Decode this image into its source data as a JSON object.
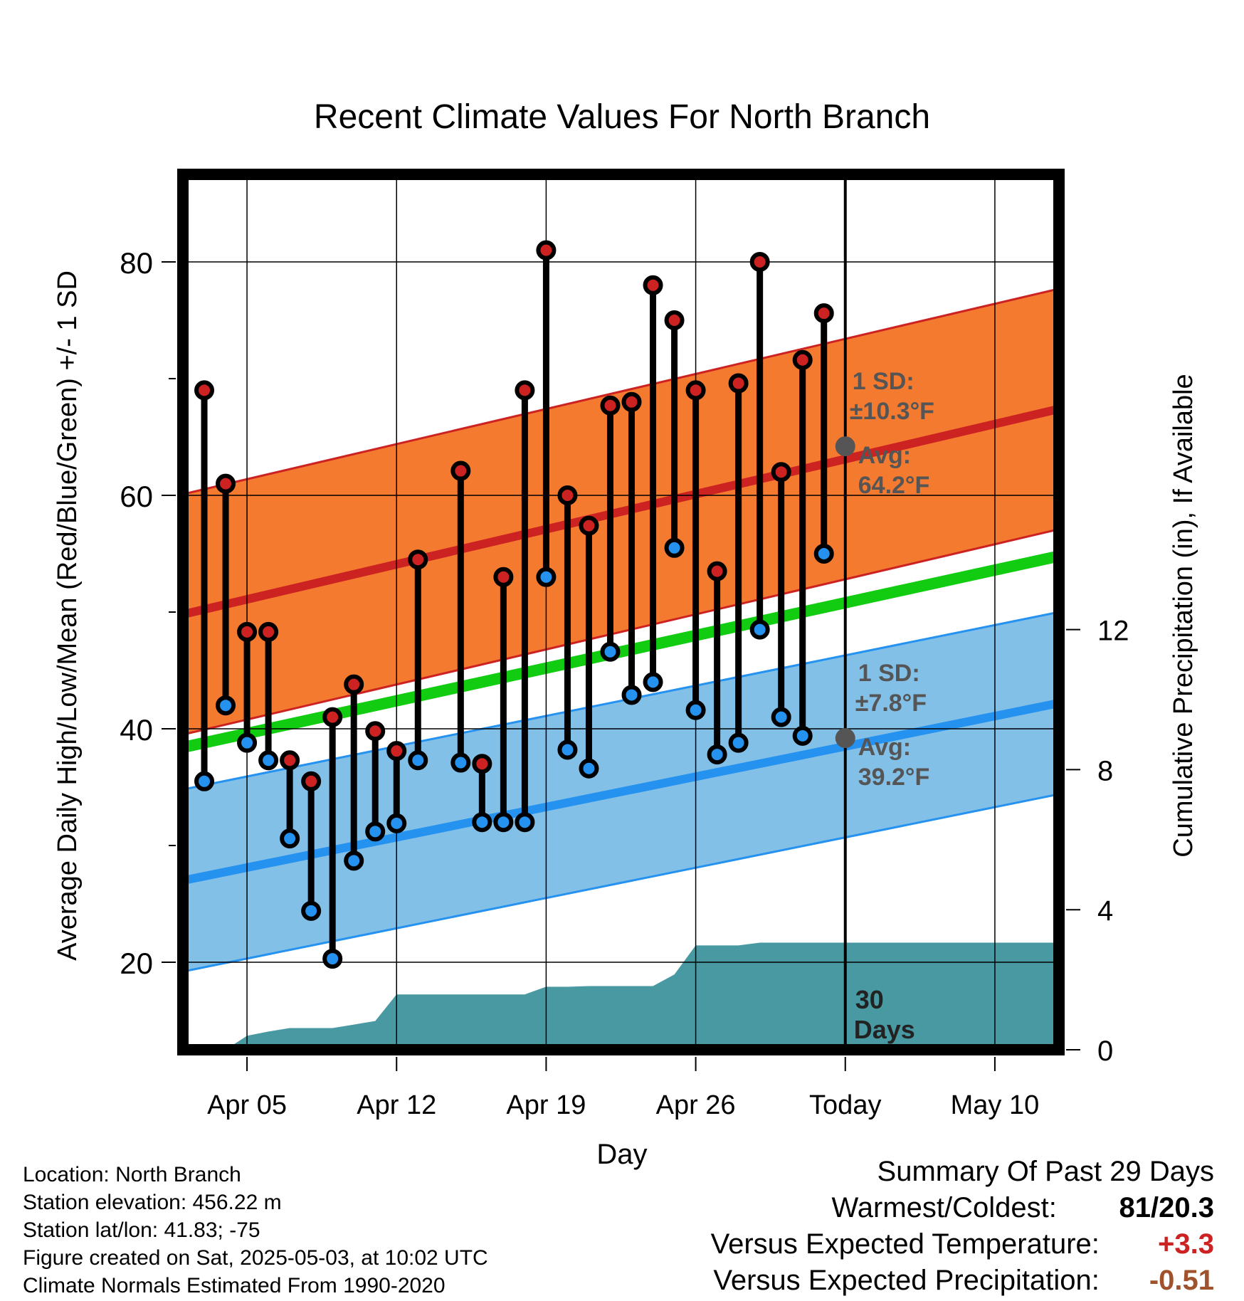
{
  "chart_data": {
    "type": "line",
    "title": "Recent Climate Values For North Branch",
    "xlabel": "Day",
    "ylabel": "Average Daily High/Low/Mean (Red/Blue/Green) +/- 1 SD",
    "y2label": "Cumulative Precipitation (in), If Available",
    "xlim": [
      "2025-04-02",
      "2025-05-13"
    ],
    "ylim": [
      12.5,
      87.5
    ],
    "y2lim": [
      0,
      25
    ],
    "xticks": [
      {
        "date": "2025-04-05",
        "label": "Apr 05"
      },
      {
        "date": "2025-04-12",
        "label": "Apr 12"
      },
      {
        "date": "2025-04-19",
        "label": "Apr 19"
      },
      {
        "date": "2025-04-26",
        "label": "Apr 26"
      },
      {
        "date": "2025-05-03",
        "label": "Today"
      },
      {
        "date": "2025-05-10",
        "label": "May 10"
      }
    ],
    "yticks": [
      20,
      40,
      60,
      80
    ],
    "y2ticks": [
      0,
      4,
      8,
      12
    ],
    "grid": true,
    "today": "2025-05-03",
    "today_label": [
      "30",
      "Days"
    ],
    "normals": {
      "dates": [
        "2025-04-02",
        "2025-05-13"
      ],
      "high_mean": [
        49.8,
        67.4
      ],
      "high_sd": 10.3,
      "low_mean": [
        27.0,
        42.2
      ],
      "low_sd": 7.8,
      "mean": [
        38.4,
        54.8
      ]
    },
    "annotations": {
      "high_sd_label": [
        "1 SD:",
        "±10.3°F"
      ],
      "high_avg_label": [
        "Avg:",
        "64.2°F"
      ],
      "high_avg_value": 64.2,
      "low_sd_label": [
        "1 SD:",
        "±7.8°F"
      ],
      "low_avg_label": [
        "Avg:",
        "39.2°F"
      ],
      "low_avg_value": 39.2
    },
    "series": [
      {
        "name": "High",
        "x": [
          "2025-04-03",
          "2025-04-04",
          "2025-04-05",
          "2025-04-06",
          "2025-04-07",
          "2025-04-08",
          "2025-04-09",
          "2025-04-10",
          "2025-04-11",
          "2025-04-12",
          "2025-04-13",
          "2025-04-15",
          "2025-04-16",
          "2025-04-17",
          "2025-04-18",
          "2025-04-19",
          "2025-04-20",
          "2025-04-21",
          "2025-04-22",
          "2025-04-23",
          "2025-04-24",
          "2025-04-25",
          "2025-04-26",
          "2025-04-27",
          "2025-04-28",
          "2025-04-29",
          "2025-04-30",
          "2025-05-01",
          "2025-05-02"
        ],
        "values": [
          69,
          61,
          48.3,
          48.3,
          37.3,
          35.5,
          41,
          43.8,
          39.8,
          38.1,
          54.5,
          62.1,
          37,
          53,
          69,
          81,
          60,
          57.4,
          67.7,
          68,
          78,
          75,
          69,
          53.5,
          69.6,
          80,
          62,
          71.6,
          75.6
        ]
      },
      {
        "name": "Low",
        "x": [
          "2025-04-03",
          "2025-04-04",
          "2025-04-05",
          "2025-04-06",
          "2025-04-07",
          "2025-04-08",
          "2025-04-09",
          "2025-04-10",
          "2025-04-11",
          "2025-04-12",
          "2025-04-13",
          "2025-04-15",
          "2025-04-16",
          "2025-04-17",
          "2025-04-18",
          "2025-04-19",
          "2025-04-20",
          "2025-04-21",
          "2025-04-22",
          "2025-04-23",
          "2025-04-24",
          "2025-04-25",
          "2025-04-26",
          "2025-04-27",
          "2025-04-28",
          "2025-04-29",
          "2025-04-30",
          "2025-05-01",
          "2025-05-02"
        ],
        "values": [
          35.5,
          42,
          38.8,
          37.3,
          30.6,
          24.4,
          20.3,
          28.7,
          31.2,
          31.9,
          37.3,
          37.1,
          32,
          32,
          32,
          53,
          38.2,
          36.6,
          46.6,
          42.9,
          44,
          55.5,
          41.6,
          37.8,
          38.8,
          48.5,
          41,
          39.4,
          55
        ]
      },
      {
        "name": "Cumulative Precipitation",
        "axis": "y2",
        "x": [
          "2025-04-02",
          "2025-04-03",
          "2025-04-04",
          "2025-04-05",
          "2025-04-06",
          "2025-04-07",
          "2025-04-08",
          "2025-04-09",
          "2025-04-10",
          "2025-04-11",
          "2025-04-12",
          "2025-04-13",
          "2025-04-14",
          "2025-04-15",
          "2025-04-16",
          "2025-04-17",
          "2025-04-18",
          "2025-04-19",
          "2025-04-20",
          "2025-04-21",
          "2025-04-22",
          "2025-04-23",
          "2025-04-24",
          "2025-04-25",
          "2025-04-26",
          "2025-04-27",
          "2025-04-28",
          "2025-04-29",
          "2025-04-30",
          "2025-05-01",
          "2025-05-02",
          "2025-05-03",
          "2025-05-13"
        ],
        "values": [
          0,
          0,
          0,
          0.4,
          0.52,
          0.62,
          0.62,
          0.62,
          0.72,
          0.82,
          1.58,
          1.58,
          1.58,
          1.58,
          1.58,
          1.58,
          1.58,
          1.8,
          1.8,
          1.82,
          1.82,
          1.82,
          1.82,
          2.15,
          2.98,
          2.98,
          2.98,
          3.06,
          3.06,
          3.06,
          3.06,
          3.06,
          3.06
        ]
      }
    ],
    "colors": {
      "high_band": "#f47a30",
      "high_line": "#cc2222",
      "low_band": "#82c0e8",
      "low_line": "#2592f0",
      "mean_line": "#11cc11",
      "precip": "#4899a2",
      "high_marker": "#cc2222",
      "low_marker": "#2592f0",
      "annotation": "#555555"
    }
  },
  "footer": {
    "location": "Location: North Branch",
    "elevation": "Station elevation: 456.22 m",
    "latlon": "Station lat/lon: 41.83; -75",
    "created": "Figure created on Sat, 2025-05-03, at 10:02 UTC",
    "normals": "Climate Normals Estimated From 1990-2020"
  },
  "summary": {
    "title": "Summary Of Past 29 Days",
    "warmest_label": "Warmest/Coldest:",
    "warmest_value": "81/20.3",
    "temp_label": "Versus Expected Temperature:",
    "temp_value": "+3.3",
    "temp_color": "#cc2222",
    "precip_label": "Versus Expected Precipitation:",
    "precip_value": "-0.51",
    "precip_color": "#a0522d"
  }
}
